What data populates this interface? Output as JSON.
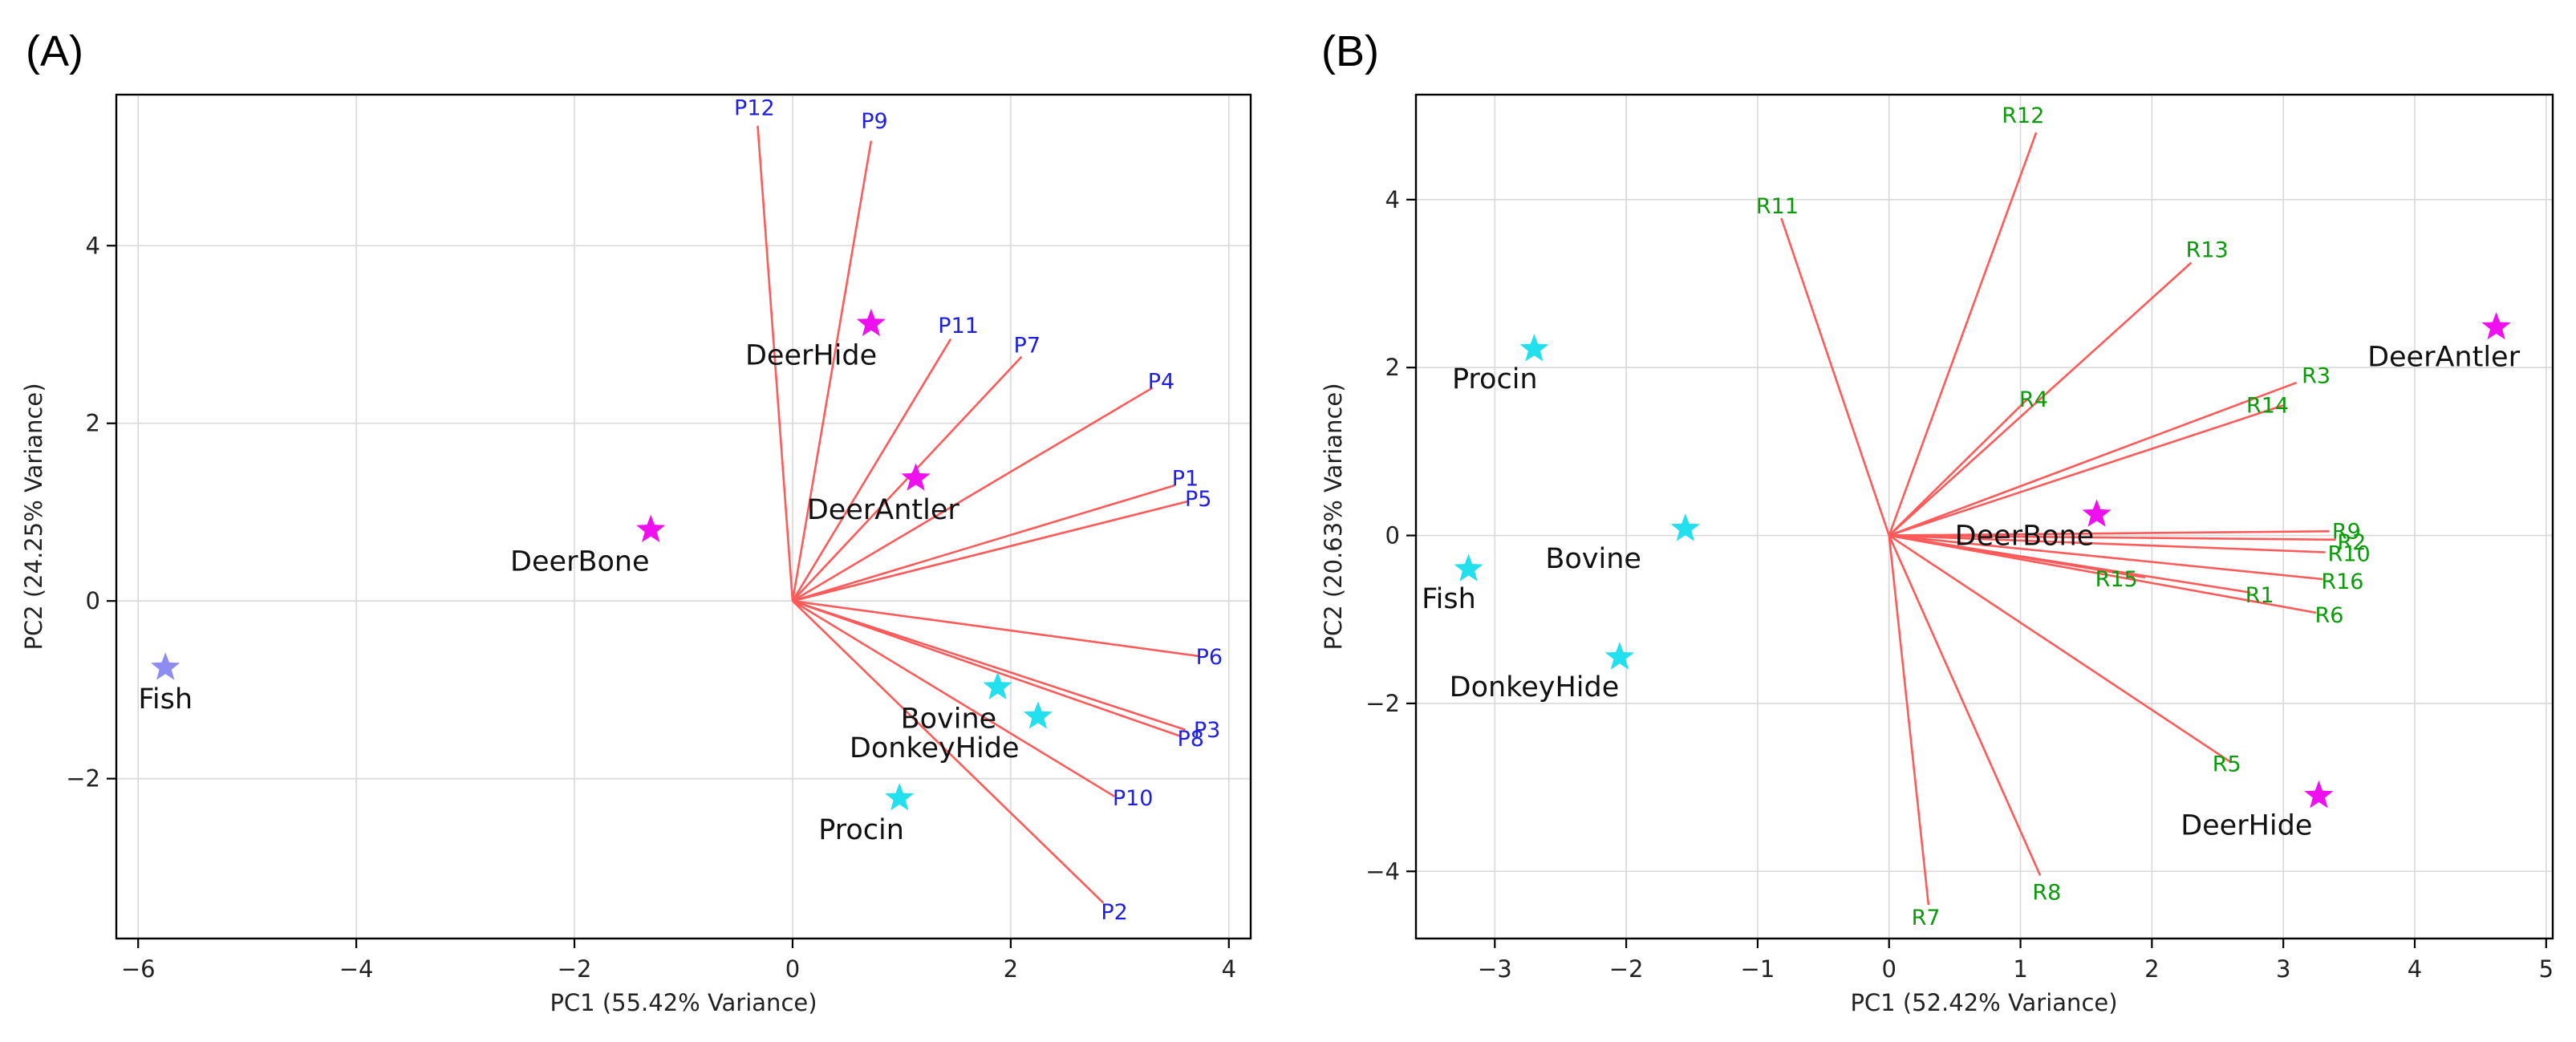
{
  "chart_data": [
    {
      "type": "scatter",
      "panel_label": "(A)",
      "title": "",
      "xlabel": "PC1 (55.42% Variance)",
      "ylabel": "PC2 (24.25% Variance)",
      "xlim": [
        -6.2,
        4.2
      ],
      "ylim": [
        -3.8,
        5.7
      ],
      "xticks": [
        -6,
        -4,
        -2,
        0,
        2,
        4
      ],
      "yticks": [
        -2,
        0,
        2,
        4
      ],
      "grid": true,
      "loading_label_color": "#1f1fdf",
      "vector_color": "#ff5a5a",
      "points": [
        {
          "label": "Fish",
          "x": -5.75,
          "y": -0.75,
          "color": "#8c8cf2",
          "label_dx": 0,
          "label_dy": -0.35
        },
        {
          "label": "DeerBone",
          "x": -1.3,
          "y": 0.8,
          "color": "#ee10ee",
          "label_dx": -0.65,
          "label_dy": -0.35
        },
        {
          "label": "DeerHide",
          "x": 0.72,
          "y": 3.12,
          "color": "#ee10ee",
          "label_dx": -0.55,
          "label_dy": -0.35
        },
        {
          "label": "DeerAntler",
          "x": 1.13,
          "y": 1.38,
          "color": "#ee10ee",
          "label_dx": -0.3,
          "label_dy": -0.35
        },
        {
          "label": "Bovine",
          "x": 1.88,
          "y": -0.97,
          "color": "#22e0ee",
          "label_dx": -0.45,
          "label_dy": -0.35
        },
        {
          "label": "DonkeyHide",
          "x": 2.25,
          "y": -1.3,
          "color": "#22e0ee",
          "label_dx": -0.95,
          "label_dy": -0.35
        },
        {
          "label": "Procin",
          "x": 0.98,
          "y": -2.22,
          "color": "#22e0ee",
          "label_dx": -0.35,
          "label_dy": -0.35
        }
      ],
      "loadings": [
        {
          "label": "P12",
          "x": -0.32,
          "y": 5.35,
          "label_x": -0.35,
          "label_y": 5.55
        },
        {
          "label": "P9",
          "x": 0.72,
          "y": 5.18,
          "label_x": 0.75,
          "label_y": 5.4
        },
        {
          "label": "P11",
          "x": 1.45,
          "y": 2.95,
          "label_x": 1.52,
          "label_y": 3.1
        },
        {
          "label": "P7",
          "x": 2.1,
          "y": 2.75,
          "label_x": 2.15,
          "label_y": 2.88
        },
        {
          "label": "P4",
          "x": 3.3,
          "y": 2.4,
          "label_x": 3.38,
          "label_y": 2.47
        },
        {
          "label": "P1",
          "x": 3.5,
          "y": 1.3,
          "label_x": 3.6,
          "label_y": 1.38
        },
        {
          "label": "P5",
          "x": 3.62,
          "y": 1.12,
          "label_x": 3.72,
          "label_y": 1.15
        },
        {
          "label": "P6",
          "x": 3.72,
          "y": -0.62,
          "label_x": 3.82,
          "label_y": -0.63
        },
        {
          "label": "P3",
          "x": 3.6,
          "y": -1.45,
          "label_x": 3.8,
          "label_y": -1.45
        },
        {
          "label": "P8",
          "x": 3.55,
          "y": -1.52,
          "label_x": 3.65,
          "label_y": -1.55
        },
        {
          "label": "P10",
          "x": 2.95,
          "y": -2.2,
          "label_x": 3.12,
          "label_y": -2.22
        },
        {
          "label": "P2",
          "x": 2.85,
          "y": -3.4,
          "label_x": 2.95,
          "label_y": -3.5
        }
      ]
    },
    {
      "type": "scatter",
      "panel_label": "(B)",
      "title": "",
      "xlabel": "PC1 (52.42% Variance)",
      "ylabel": "PC2 (20.63% Variance)",
      "xlim": [
        -3.6,
        5.05
      ],
      "ylim": [
        -4.8,
        5.25
      ],
      "xticks": [
        -3,
        -2,
        -1,
        0,
        1,
        2,
        3,
        4,
        5
      ],
      "yticks": [
        -4,
        -2,
        0,
        2,
        4
      ],
      "grid": true,
      "loading_label_color": "#0a9a0a",
      "vector_color": "#ff5a5a",
      "points": [
        {
          "label": "Procin",
          "x": -2.7,
          "y": 2.22,
          "color": "#22e0ee",
          "label_dx": -0.3,
          "label_dy": -0.35
        },
        {
          "label": "Fish",
          "x": -3.2,
          "y": -0.4,
          "color": "#22e0ee",
          "label_dx": -0.15,
          "label_dy": -0.35
        },
        {
          "label": "Bovine",
          "x": -1.55,
          "y": 0.08,
          "color": "#22e0ee",
          "label_dx": -0.7,
          "label_dy": -0.35
        },
        {
          "label": "DonkeyHide",
          "x": -2.05,
          "y": -1.45,
          "color": "#22e0ee",
          "label_dx": -0.65,
          "label_dy": -0.35
        },
        {
          "label": "DeerAntler",
          "x": 4.62,
          "y": 2.48,
          "color": "#ee10ee",
          "label_dx": -0.4,
          "label_dy": -0.35
        },
        {
          "label": "DeerBone",
          "x": 1.58,
          "y": 0.25,
          "color": "#ee10ee",
          "label_dx": -0.55,
          "label_dy": -0.25
        },
        {
          "label": "DeerHide",
          "x": 3.27,
          "y": -3.1,
          "color": "#ee10ee",
          "label_dx": -0.55,
          "label_dy": -0.35
        }
      ],
      "loadings": [
        {
          "label": "R12",
          "x": 1.12,
          "y": 4.8,
          "label_x": 1.02,
          "label_y": 5.0
        },
        {
          "label": "R11",
          "x": -0.82,
          "y": 3.78,
          "label_x": -0.85,
          "label_y": 3.92
        },
        {
          "label": "R13",
          "x": 2.3,
          "y": 3.25,
          "label_x": 2.42,
          "label_y": 3.4
        },
        {
          "label": "R4",
          "x": 1.05,
          "y": 1.62,
          "label_x": 1.1,
          "label_y": 1.62
        },
        {
          "label": "R3",
          "x": 3.1,
          "y": 1.82,
          "label_x": 3.25,
          "label_y": 1.9
        },
        {
          "label": "R14",
          "x": 3.0,
          "y": 1.55,
          "label_x": 2.88,
          "label_y": 1.55
        },
        {
          "label": "R9",
          "x": 3.35,
          "y": 0.05,
          "label_x": 3.48,
          "label_y": 0.05
        },
        {
          "label": "R2",
          "x": 3.4,
          "y": -0.05,
          "label_x": 3.52,
          "label_y": -0.08
        },
        {
          "label": "R10",
          "x": 3.32,
          "y": -0.2,
          "label_x": 3.5,
          "label_y": -0.22
        },
        {
          "label": "R16",
          "x": 3.3,
          "y": -0.52,
          "label_x": 3.45,
          "label_y": -0.55
        },
        {
          "label": "R15",
          "x": 1.95,
          "y": -0.5,
          "label_x": 1.73,
          "label_y": -0.52
        },
        {
          "label": "R1",
          "x": 2.75,
          "y": -0.68,
          "label_x": 2.82,
          "label_y": -0.71
        },
        {
          "label": "R6",
          "x": 3.25,
          "y": -0.92,
          "label_x": 3.35,
          "label_y": -0.95
        },
        {
          "label": "R5",
          "x": 2.6,
          "y": -2.7,
          "label_x": 2.57,
          "label_y": -2.72
        },
        {
          "label": "R8",
          "x": 1.15,
          "y": -4.05,
          "label_x": 1.2,
          "label_y": -4.25
        },
        {
          "label": "R7",
          "x": 0.3,
          "y": -4.4,
          "label_x": 0.28,
          "label_y": -4.55
        }
      ]
    }
  ]
}
